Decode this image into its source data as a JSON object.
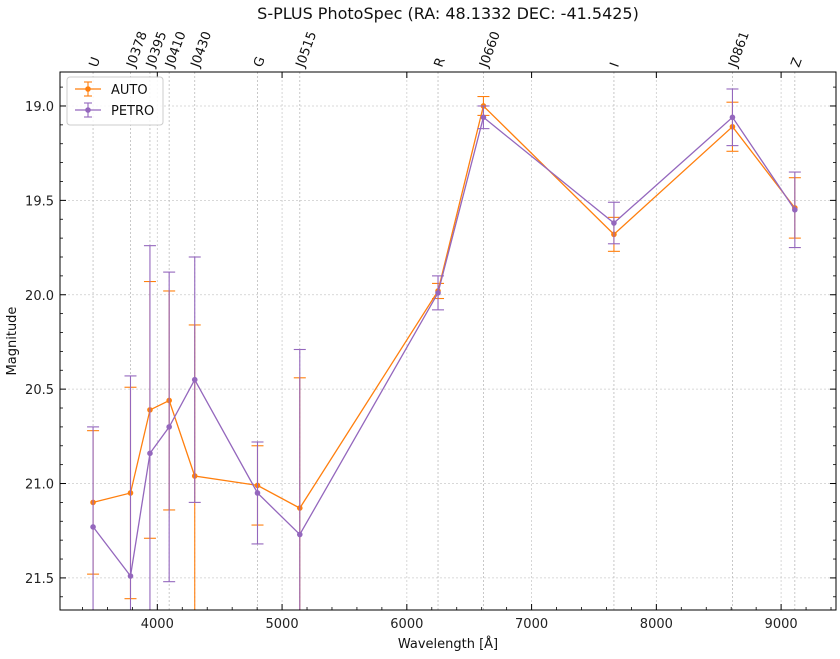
{
  "chart_data": {
    "type": "line",
    "title": "S-PLUS PhotoSpec (RA: 48.1332 DEC: -41.5425)",
    "xlabel": "Wavelength [Å]",
    "ylabel": "Magnitude",
    "xlim": [
      3220,
      9440
    ],
    "ylim": [
      21.67,
      18.82
    ],
    "y_inverted": true,
    "x_ticks": [
      4000,
      5000,
      6000,
      7000,
      8000,
      9000
    ],
    "y_ticks": [
      19.0,
      19.5,
      20.0,
      20.5,
      21.0,
      21.5
    ],
    "grid": true,
    "legend_position": "top-left",
    "band_labels": [
      {
        "label": "U",
        "x": 3485
      },
      {
        "label": "J0378",
        "x": 3785
      },
      {
        "label": "J0395",
        "x": 3941
      },
      {
        "label": "J0410",
        "x": 4095
      },
      {
        "label": "J0430",
        "x": 4300
      },
      {
        "label": "G",
        "x": 4803
      },
      {
        "label": "J0515",
        "x": 5142
      },
      {
        "label": "R",
        "x": 6250
      },
      {
        "label": "J0660",
        "x": 6614
      },
      {
        "label": "I",
        "x": 7660
      },
      {
        "label": "J0861",
        "x": 8610
      },
      {
        "label": "Z",
        "x": 9110
      }
    ],
    "series": [
      {
        "name": "AUTO",
        "color": "#ff7f0e",
        "points": [
          {
            "x": 3485,
            "y": 21.1,
            "err": 0.38
          },
          {
            "x": 3785,
            "y": 21.05,
            "err": 0.56
          },
          {
            "x": 3941,
            "y": 20.61,
            "err": 0.68
          },
          {
            "x": 4095,
            "y": 20.56,
            "err": 0.58
          },
          {
            "x": 4300,
            "y": 20.96,
            "err": 0.8
          },
          {
            "x": 4803,
            "y": 21.01,
            "err": 0.21
          },
          {
            "x": 5142,
            "y": 21.13,
            "err": 0.69
          },
          {
            "x": 6250,
            "y": 19.98,
            "err": 0.04
          },
          {
            "x": 6614,
            "y": 19.0,
            "err": 0.05
          },
          {
            "x": 7660,
            "y": 19.68,
            "err": 0.09
          },
          {
            "x": 8610,
            "y": 19.11,
            "err": 0.13
          },
          {
            "x": 9110,
            "y": 19.54,
            "err": 0.16
          }
        ]
      },
      {
        "name": "PETRO",
        "color": "#9467bd",
        "points": [
          {
            "x": 3485,
            "y": 21.23,
            "err": 0.53
          },
          {
            "x": 3785,
            "y": 21.49,
            "err": 1.06
          },
          {
            "x": 3941,
            "y": 20.84,
            "err": 1.1
          },
          {
            "x": 4095,
            "y": 20.7,
            "err": 0.82
          },
          {
            "x": 4300,
            "y": 20.45,
            "err": 0.65
          },
          {
            "x": 4803,
            "y": 21.05,
            "err": 0.27
          },
          {
            "x": 5142,
            "y": 21.27,
            "err": 0.98
          },
          {
            "x": 6250,
            "y": 19.99,
            "err": 0.09
          },
          {
            "x": 6614,
            "y": 19.06,
            "err": 0.06
          },
          {
            "x": 7660,
            "y": 19.62,
            "err": 0.11
          },
          {
            "x": 8610,
            "y": 19.06,
            "err": 0.15
          },
          {
            "x": 9110,
            "y": 19.55,
            "err": 0.2
          }
        ]
      }
    ]
  }
}
